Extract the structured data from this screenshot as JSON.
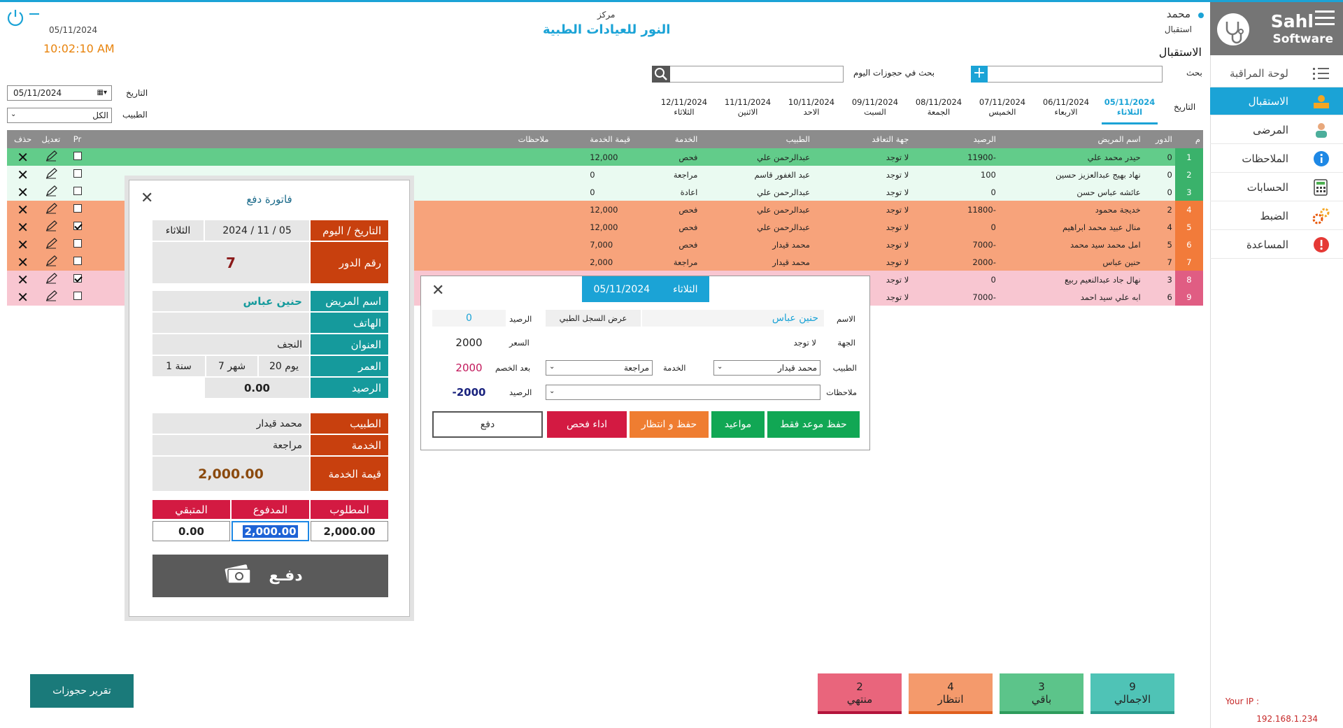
{
  "sidebar": {
    "brand_line1": "Sahl",
    "brand_line2": "Software",
    "items": [
      {
        "label": "لوحة المراقبة",
        "icon": "list-icon"
      },
      {
        "label": "الاستقبال",
        "icon": "reception-icon"
      },
      {
        "label": "المرضى",
        "icon": "patient-icon"
      },
      {
        "label": "الملاحظات",
        "icon": "info-icon"
      },
      {
        "label": "الحسابات",
        "icon": "calculator-icon"
      },
      {
        "label": "الضبط",
        "icon": "gears-icon"
      },
      {
        "label": "المساعدة",
        "icon": "alert-icon"
      }
    ],
    "ip_label": "Your IP :",
    "ip_value": "192.168.1.234"
  },
  "header": {
    "user_name": "محمد",
    "user_role": "استقبال",
    "center_label": "مركز",
    "center_name": "النور للعيادات الطبية",
    "date": "05/11/2024",
    "time": "10:02:10 AM",
    "page_title": "الاستقبال"
  },
  "search": {
    "label": "بحث",
    "today_label": "بحث في حجوزات اليوم"
  },
  "date_tabs": {
    "label": "التاريخ",
    "tabs": [
      {
        "date": "05/11/2024",
        "day": "الثلاثاء",
        "active": true
      },
      {
        "date": "06/11/2024",
        "day": "الاربعاء"
      },
      {
        "date": "07/11/2024",
        "day": "الخميس"
      },
      {
        "date": "08/11/2024",
        "day": "الجمعة"
      },
      {
        "date": "09/11/2024",
        "day": "السبت"
      },
      {
        "date": "10/11/2024",
        "day": "الاحد"
      },
      {
        "date": "11/11/2024",
        "day": "الاثنين"
      },
      {
        "date": "12/11/2024",
        "day": "الثلاثاء"
      }
    ]
  },
  "filters": {
    "date_label": "التاريخ",
    "date_value": "05/11/2024",
    "doctor_label": "الطبيب",
    "doctor_value": "الكل"
  },
  "table": {
    "headers": [
      "م",
      "الدور",
      "اسم المريض",
      "الرصيد",
      "جهة التعاقد",
      "الطبيب",
      "الخدمة",
      "قيمة الخدمة",
      "ملاحظات",
      "Pr",
      "تعديل",
      "حذف"
    ],
    "rows": [
      {
        "n": "1",
        "turn": "0",
        "name": "حيدر محمد علي",
        "balance": "-11900",
        "contract": "لا توجد",
        "doctor": "عبدالرحمن علي",
        "service": "فحص",
        "price": "12,000",
        "notes": "",
        "pr": false,
        "color": "green1"
      },
      {
        "n": "2",
        "turn": "0",
        "name": "نهاد بهيج عبدالعزيز حسين",
        "balance": "100",
        "contract": "لا توجد",
        "doctor": "عبد الغفور قاسم",
        "service": "مراجعة",
        "price": "0",
        "notes": "",
        "pr": false,
        "color": "green"
      },
      {
        "n": "3",
        "turn": "0",
        "name": "عائشه عباس حسن",
        "balance": "0",
        "contract": "لا توجد",
        "doctor": "عبدالرحمن علي",
        "service": "اعادة",
        "price": "0",
        "notes": "",
        "pr": false,
        "color": "green"
      },
      {
        "n": "4",
        "turn": "2",
        "name": "خديجة محمود",
        "balance": "-11800",
        "contract": "لا توجد",
        "doctor": "عبدالرحمن علي",
        "service": "فحص",
        "price": "12,000",
        "notes": "",
        "pr": false,
        "color": "orange"
      },
      {
        "n": "5",
        "turn": "4",
        "name": "منال عبيد محمد ابراهيم",
        "balance": "0",
        "contract": "لا توجد",
        "doctor": "عبدالرحمن علي",
        "service": "فحص",
        "price": "12,000",
        "notes": "",
        "pr": true,
        "color": "orange"
      },
      {
        "n": "6",
        "turn": "5",
        "name": "امل محمد سيد محمد",
        "balance": "-7000",
        "contract": "لا توجد",
        "doctor": "محمد قيدار",
        "service": "فحص",
        "price": "7,000",
        "notes": "",
        "pr": false,
        "color": "orange"
      },
      {
        "n": "7",
        "turn": "7",
        "name": "حنين عباس",
        "balance": "-2000",
        "contract": "لا توجد",
        "doctor": "محمد قيدار",
        "service": "مراجعة",
        "price": "2,000",
        "notes": "",
        "pr": false,
        "color": "orange"
      },
      {
        "n": "8",
        "turn": "3",
        "name": "نهال جاد عبدالنعيم ربيع",
        "balance": "0",
        "contract": "لا توجد",
        "doctor": "",
        "service": "",
        "price": "",
        "notes": "",
        "pr": true,
        "color": "pink"
      },
      {
        "n": "9",
        "turn": "6",
        "name": "ابه علي سيد احمد",
        "balance": "-7000",
        "contract": "لا توجد",
        "doctor": "",
        "service": "",
        "price": "",
        "notes": "",
        "pr": false,
        "color": "pink"
      }
    ]
  },
  "invoice": {
    "title": "فاتورة دفع",
    "date_label": "التاريخ / اليوم",
    "date_value": "2024 / 11 / 05",
    "day_value": "الثلاثاء",
    "turn_label": "رقم الدور",
    "turn_value": "7",
    "patient_label": "اسم المريض",
    "patient_value": "حنين عباس",
    "phone_label": "الهاتف",
    "phone_value": "",
    "address_label": "العنوان",
    "address_value": "النجف",
    "age_label": "العمر",
    "age_days": "20 يوم",
    "age_months": "7 شهر",
    "age_years": "1 سنة",
    "balance_label": "الرصيد",
    "balance_value": "0.00",
    "doctor_label": "الطبيب",
    "doctor_value": "محمد قيدار",
    "service_label": "الخدمة",
    "service_value": "مراجعة",
    "price_label": "قيمة الخدمة",
    "price_value": "2,000.00",
    "required_label": "المطلوب",
    "paid_label": "المدفوع",
    "remaining_label": "المتبقي",
    "required_value": "2,000.00",
    "paid_value": "2,000.00",
    "remaining_value": "0.00",
    "pay_button": "دفـع"
  },
  "booking": {
    "header_date": "05/11/2024",
    "header_day": "الثلاثاء",
    "name_label": "الاسم",
    "name_value": "حنين عباس",
    "record_button": "عرض السجل الطبي",
    "balance_label": "الرصيد",
    "balance_value": "0",
    "contract_label": "الجهة",
    "contract_value": "لا توجد",
    "price_label": "السعر",
    "price_value": "2000",
    "doctor_label": "الطبيب",
    "doctor_value": "محمد قيدار",
    "service_label": "الخدمة",
    "service_value": "مراجعة",
    "after_discount_label": "بعد الخصم",
    "after_discount_value": "2000",
    "notes_label": "ملاحظات",
    "balance2_label": "الرصيد",
    "balance2_value": "-2000",
    "buttons": {
      "save_only": "حفظ موعد فقط",
      "appointments": "مواعيد",
      "save_wait": "حفظ و انتظار",
      "perform_exam": "اداء فحص",
      "pay": "دفع"
    }
  },
  "stats": [
    {
      "value": "9",
      "label": "الاجمالي",
      "color": "#4fc3b6"
    },
    {
      "value": "3",
      "label": "باقي",
      "color": "#5cc48a"
    },
    {
      "value": "4",
      "label": "انتظار",
      "color": "#f49a6c"
    },
    {
      "value": "2",
      "label": "منتهي",
      "color": "#e9657c"
    }
  ],
  "report_button": "تقرير حجوزات",
  "colors": {
    "accent": "#1ba3d6",
    "label_orange": "#c8400e",
    "label_teal": "#159a9c",
    "label_red": "#d31a42"
  }
}
